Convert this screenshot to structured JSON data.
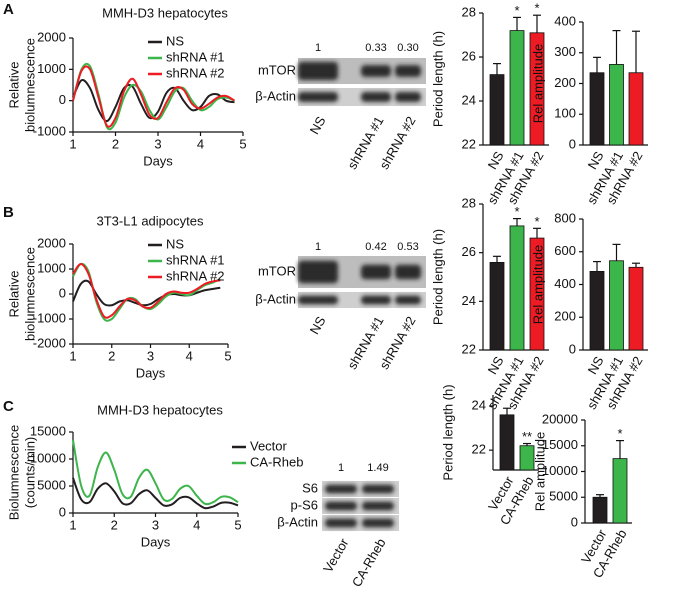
{
  "panels": [
    "A",
    "B",
    "C"
  ],
  "chart_data": [
    {
      "type": "line",
      "title": "MMH-D3 hepatocytes",
      "xlabel": "Days",
      "ylabel": [
        "Relative",
        "biolumnescence"
      ],
      "x": [
        1,
        1.2,
        1.4,
        1.6,
        1.8,
        2,
        2.2,
        2.4,
        2.6,
        2.8,
        3,
        3.2,
        3.4,
        3.6,
        3.8,
        4,
        4.2,
        4.4,
        4.6,
        4.8
      ],
      "xlim": [
        1,
        5
      ],
      "xticks": [
        1,
        2,
        3,
        4,
        5
      ],
      "ylim": [
        -1000,
        2000
      ],
      "yticks": [
        -1000,
        0,
        1000,
        2000
      ],
      "series": [
        {
          "name": "NS",
          "color": "#231f20",
          "values": [
            100,
            650,
            400,
            -300,
            -650,
            -200,
            400,
            450,
            -100,
            -550,
            -350,
            250,
            400,
            0,
            -300,
            -200,
            150,
            200,
            0,
            -50
          ]
        },
        {
          "name": "shRNA #1",
          "color": "#3cb54a",
          "values": [
            0,
            1000,
            1100,
            200,
            -850,
            -700,
            100,
            500,
            300,
            -300,
            -600,
            -200,
            300,
            400,
            0,
            -300,
            -200,
            50,
            100,
            0
          ]
        },
        {
          "name": "shRNA #2",
          "color": "#ed1c24",
          "values": [
            0,
            950,
            1000,
            100,
            -800,
            -550,
            300,
            700,
            200,
            -450,
            -550,
            -50,
            400,
            350,
            -100,
            -250,
            -100,
            100,
            150,
            0
          ]
        }
      ]
    },
    {
      "type": "bar",
      "ylabel": "Period length (h)",
      "categories": [
        "NS",
        "shRNA #1",
        "shRNA #2"
      ],
      "values": [
        25.2,
        27.2,
        27.1
      ],
      "errors": [
        0.5,
        0.6,
        0.8
      ],
      "colors": [
        "#231f20",
        "#3cb54a",
        "#ed1c24"
      ],
      "ylim": [
        22,
        28
      ],
      "yticks": [
        22,
        24,
        26,
        28
      ],
      "annotations": [
        {
          "text": "*",
          "category": "shRNA #1"
        },
        {
          "text": "*",
          "category": "shRNA #2"
        }
      ]
    },
    {
      "type": "bar",
      "ylabel": "Rel amplitude",
      "categories": [
        "NS",
        "shRNA #1",
        "shRNA #2"
      ],
      "values": [
        235,
        262,
        235
      ],
      "errors": [
        50,
        110,
        135
      ],
      "colors": [
        "#231f20",
        "#3cb54a",
        "#ed1c24"
      ],
      "ylim": [
        0,
        400
      ],
      "yticks": [
        0,
        100,
        200,
        300,
        400
      ]
    },
    {
      "type": "line",
      "title": "3T3-L1 adipocytes",
      "xlabel": "Days",
      "ylabel": [
        "Relative",
        "biolumnescence"
      ],
      "x": [
        1,
        1.2,
        1.4,
        1.6,
        1.8,
        2,
        2.2,
        2.4,
        2.6,
        2.8,
        3,
        3.2,
        3.4,
        3.6,
        3.8,
        4,
        4.2,
        4.4,
        4.6,
        4.8
      ],
      "xlim": [
        1,
        5
      ],
      "xticks": [
        1,
        2,
        3,
        4,
        5
      ],
      "ylim": [
        -2000,
        2000
      ],
      "yticks": [
        -2000,
        -1000,
        0,
        1000,
        2000
      ],
      "series": [
        {
          "name": "NS",
          "color": "#231f20",
          "values": [
            -300,
            400,
            500,
            0,
            -400,
            -450,
            -300,
            -250,
            -350,
            -450,
            -400,
            -200,
            -50,
            0,
            -50,
            -50,
            50,
            150,
            200,
            250
          ]
        },
        {
          "name": "shRNA #1",
          "color": "#3cb54a",
          "values": [
            700,
            1200,
            900,
            -300,
            -1000,
            -1000,
            -600,
            -200,
            -200,
            -500,
            -600,
            -400,
            -100,
            50,
            0,
            -50,
            150,
            350,
            450,
            600
          ]
        },
        {
          "name": "shRNA #2",
          "color": "#ed1c24",
          "values": [
            800,
            1200,
            800,
            -200,
            -900,
            -850,
            -500,
            -200,
            -250,
            -500,
            -550,
            -300,
            0,
            100,
            50,
            50,
            200,
            400,
            500,
            550
          ]
        }
      ]
    },
    {
      "type": "bar",
      "ylabel": "Period length (h)",
      "categories": [
        "NS",
        "shRNA #1",
        "shRNA #2"
      ],
      "values": [
        25.6,
        27.1,
        26.6
      ],
      "errors": [
        0.25,
        0.3,
        0.4
      ],
      "colors": [
        "#231f20",
        "#3cb54a",
        "#ed1c24"
      ],
      "ylim": [
        22,
        28
      ],
      "yticks": [
        22,
        24,
        26,
        28
      ],
      "annotations": [
        {
          "text": "*",
          "category": "shRNA #1"
        },
        {
          "text": "*",
          "category": "shRNA #2"
        }
      ]
    },
    {
      "type": "bar",
      "ylabel": "Rel amplitude",
      "categories": [
        "NS",
        "shRNA #1",
        "shRNA #2"
      ],
      "values": [
        480,
        545,
        505
      ],
      "errors": [
        60,
        100,
        25
      ],
      "colors": [
        "#231f20",
        "#3cb54a",
        "#ed1c24"
      ],
      "ylim": [
        0,
        800
      ],
      "yticks": [
        0,
        200,
        400,
        600,
        800
      ]
    },
    {
      "type": "line",
      "title": "MMH-D3 hepatocytes",
      "xlabel": "Days",
      "ylabel": [
        "Biolumnescence",
        "(counts/min)"
      ],
      "x": [
        1,
        1.2,
        1.4,
        1.6,
        1.8,
        2,
        2.2,
        2.4,
        2.6,
        2.8,
        3,
        3.2,
        3.4,
        3.6,
        3.8,
        4,
        4.2,
        4.4,
        4.6,
        4.8,
        5
      ],
      "xlim": [
        1,
        5
      ],
      "xticks": [
        1,
        2,
        3,
        4,
        5
      ],
      "ylim": [
        0,
        15000
      ],
      "yticks": [
        0,
        5000,
        10000,
        15000
      ],
      "series": [
        {
          "name": "Vector",
          "color": "#231f20",
          "values": [
            6500,
            2500,
            2000,
            4500,
            5500,
            4000,
            1800,
            1800,
            3500,
            4200,
            2800,
            1400,
            1600,
            2800,
            2900,
            1800,
            900,
            1200,
            1900,
            1900,
            1400
          ]
        },
        {
          "name": "CA-Rheb",
          "color": "#3cb54a",
          "values": [
            13500,
            5000,
            3200,
            8500,
            11200,
            8000,
            3500,
            3000,
            6500,
            8000,
            5500,
            2500,
            2600,
            4500,
            5000,
            3200,
            1700,
            2000,
            3000,
            2900,
            2000
          ]
        }
      ]
    },
    {
      "type": "bar",
      "ylabel": "Period length (h)",
      "categories": [
        "Vector",
        "CA-Rheb"
      ],
      "values": [
        23.6,
        22.2
      ],
      "errors": [
        0.3,
        0.1
      ],
      "colors": [
        "#231f20",
        "#3cb54a"
      ],
      "ylim": [
        21.1,
        24.5
      ],
      "yticks": [
        22,
        24
      ],
      "annotations": [
        {
          "text": "**",
          "category": "CA-Rheb"
        }
      ]
    },
    {
      "type": "bar",
      "ylabel": "Rel amplitude",
      "categories": [
        "Vector",
        "CA-Rheb"
      ],
      "values": [
        5000,
        12500
      ],
      "errors": [
        500,
        3500
      ],
      "colors": [
        "#231f20",
        "#3cb54a"
      ],
      "ylim": [
        0,
        20000
      ],
      "yticks": [
        0,
        5000,
        10000,
        15000,
        20000
      ],
      "annotations": [
        {
          "text": "*",
          "category": "CA-Rheb"
        }
      ]
    }
  ],
  "blots": [
    {
      "quantities": [
        "1",
        "0.33",
        "0.30"
      ],
      "rows": [
        "mTOR",
        "β-Actin"
      ],
      "lanes": [
        "NS",
        "shRNA #1",
        "shRNA #2"
      ]
    },
    {
      "quantities": [
        "1",
        "0.42",
        "0.53"
      ],
      "rows": [
        "mTOR",
        "β-Actin"
      ],
      "lanes": [
        "NS",
        "shRNA #1",
        "shRNA #2"
      ]
    },
    {
      "quantities": [
        "1",
        "1.49"
      ],
      "rows": [
        "S6",
        "p-S6",
        "β-Actin"
      ],
      "lanes": [
        "Vector",
        "CA-Rheb"
      ]
    }
  ]
}
